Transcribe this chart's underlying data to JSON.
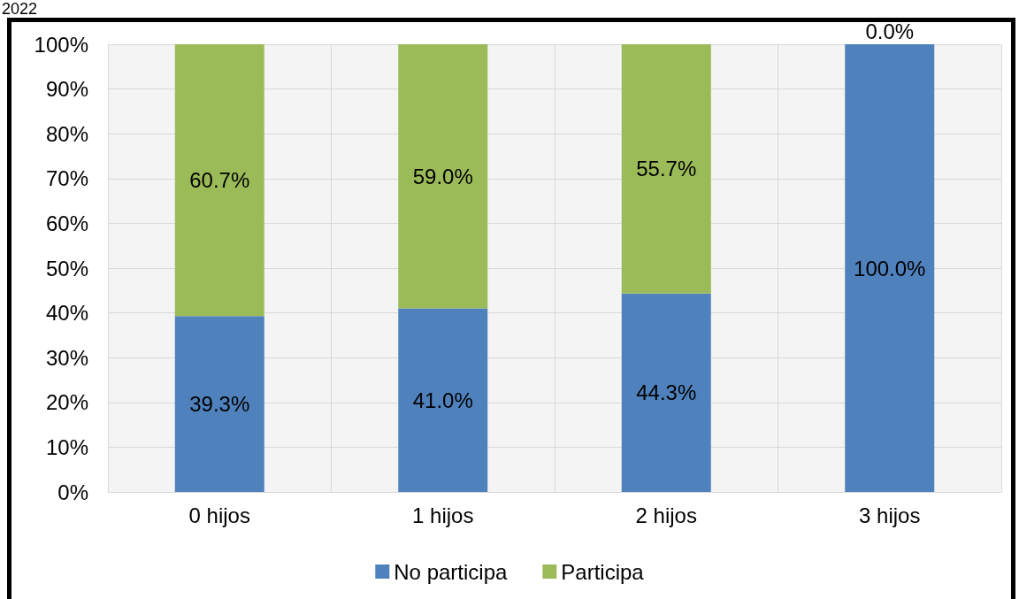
{
  "chart_data": {
    "type": "bar",
    "title": "2022",
    "stacked": true,
    "categories": [
      "0 hijos",
      "1 hijos",
      "2 hijos",
      "3 hijos"
    ],
    "series": [
      {
        "name": "No participa",
        "color": "#4f81bd",
        "values": [
          39.3,
          41.0,
          44.3,
          100.0
        ],
        "value_labels": [
          "39.3%",
          "41.0%",
          "44.3%",
          "100.0%"
        ]
      },
      {
        "name": "Participa",
        "color": "#9bbb59",
        "values": [
          60.7,
          59.0,
          55.7,
          0.0
        ],
        "value_labels": [
          "60.7%",
          "59.0%",
          "55.7%",
          "0.0%"
        ]
      }
    ],
    "ylim": [
      0,
      100
    ],
    "yticks": [
      {
        "value": 0,
        "label": "0%"
      },
      {
        "value": 10,
        "label": "10%"
      },
      {
        "value": 20,
        "label": "20%"
      },
      {
        "value": 30,
        "label": "30%"
      },
      {
        "value": 40,
        "label": "40%"
      },
      {
        "value": 50,
        "label": "50%"
      },
      {
        "value": 60,
        "label": "60%"
      },
      {
        "value": 70,
        "label": "70%"
      },
      {
        "value": 80,
        "label": "80%"
      },
      {
        "value": 90,
        "label": "90%"
      },
      {
        "value": 100,
        "label": "100%"
      }
    ],
    "grid": true,
    "legend": "bottom"
  }
}
